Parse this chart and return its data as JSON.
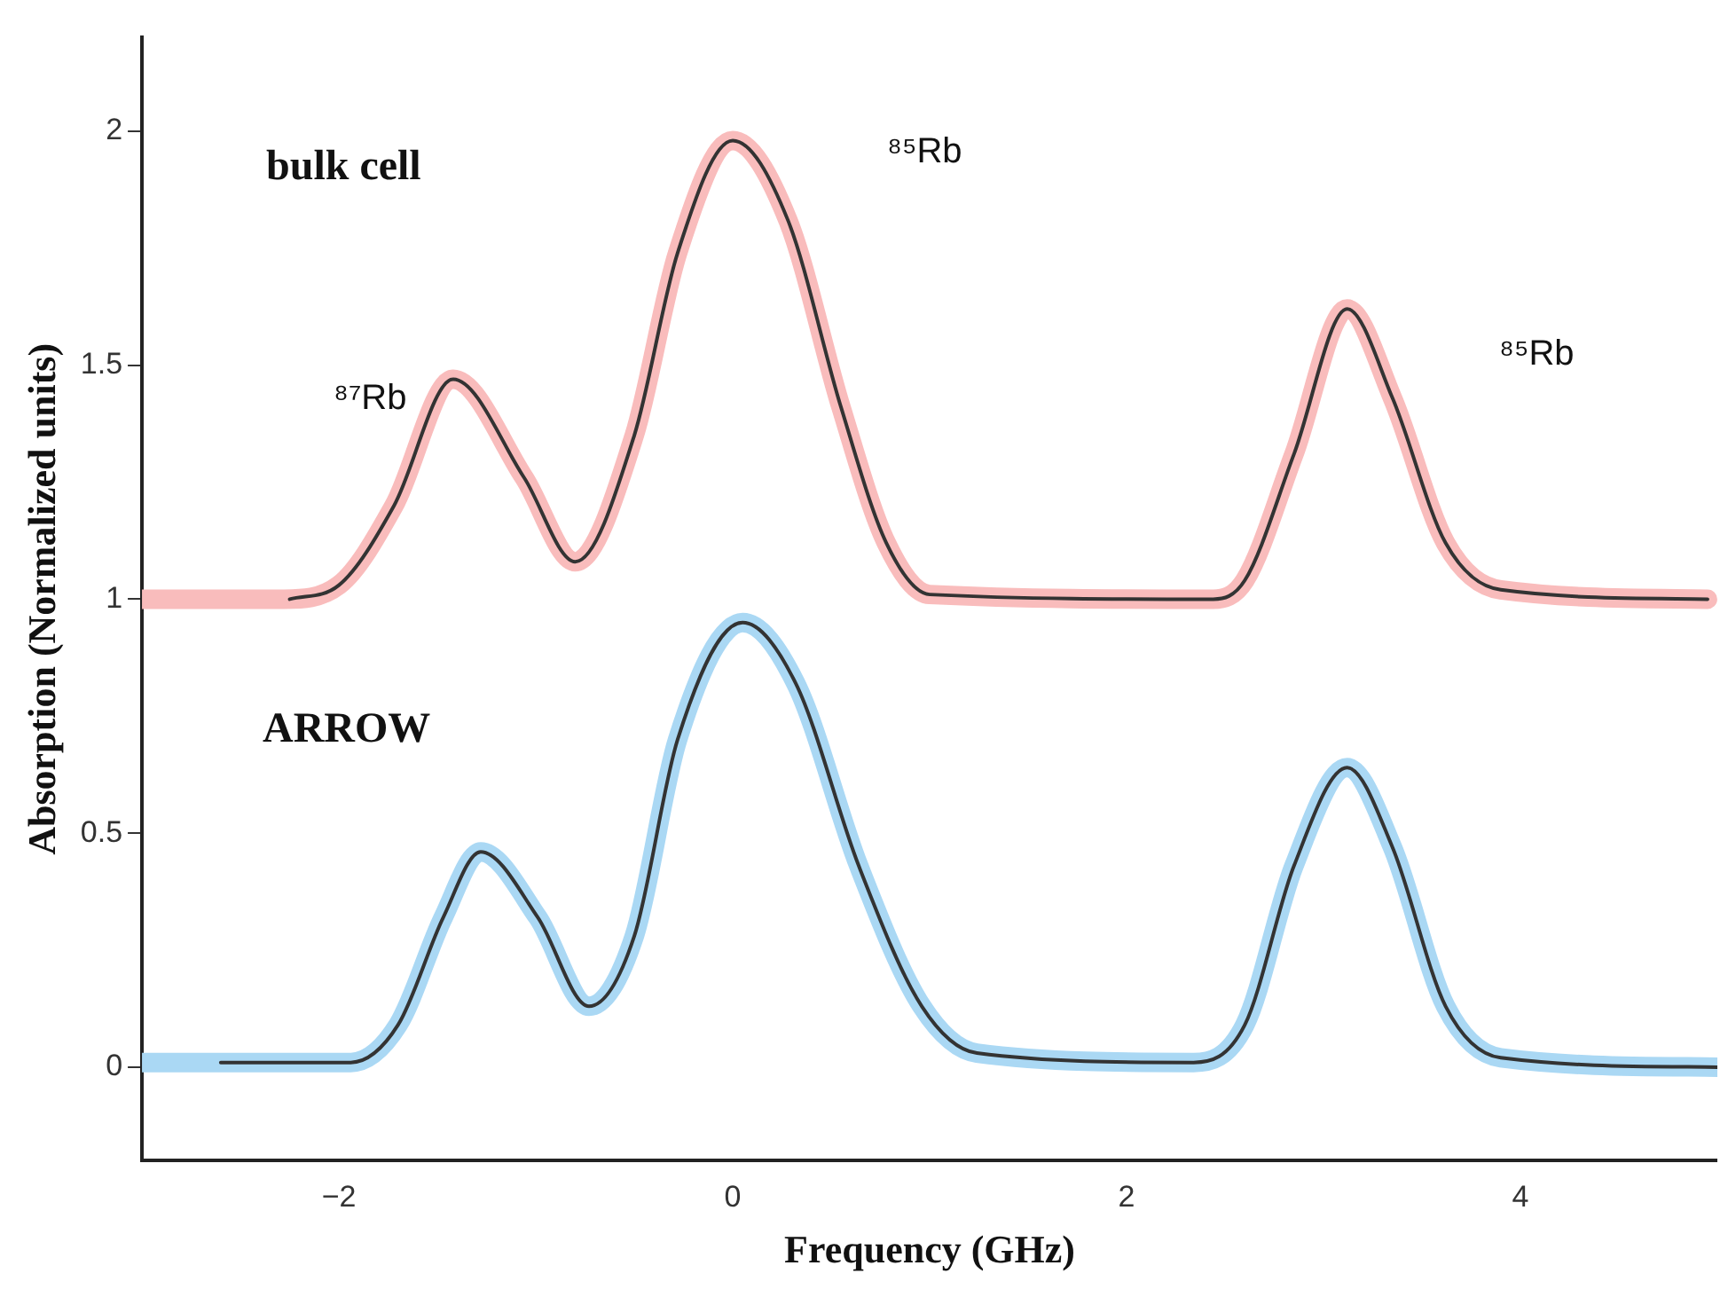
{
  "chart_data": {
    "type": "line",
    "xlabel": "Frequency (GHz)",
    "ylabel": "Absorption (Normalized units)",
    "xlim": [
      -3,
      5
    ],
    "ylim": [
      -0.2,
      2.2
    ],
    "xticks": [
      -2,
      0,
      2,
      4
    ],
    "yticks": [
      0,
      0.5,
      1,
      1.5,
      2
    ],
    "grid": false,
    "legend": false,
    "marker": "none",
    "line_style": "solid",
    "series": [
      {
        "color": "#f9bcbc",
        "x": [
          -3,
          -2.28,
          -2,
          -1.72,
          -1.42,
          -1.06,
          -0.8,
          -0.5,
          -0.28,
          0,
          0.28,
          0.55,
          0.78,
          1,
          2.44,
          2.6,
          2.85,
          3.12,
          3.35,
          3.62,
          3.9,
          4.95
        ],
        "values": [
          1,
          1,
          1.03,
          1.2,
          1.47,
          1.26,
          1.08,
          1.35,
          1.74,
          1.98,
          1.81,
          1.41,
          1.12,
          1.01,
          1,
          1.04,
          1.31,
          1.62,
          1.43,
          1.12,
          1.02,
          1
        ]
      },
      {
        "color": "#333333",
        "x": [
          -2.25,
          -2,
          -1.72,
          -1.42,
          -1.06,
          -0.8,
          -0.5,
          -0.28,
          0,
          0.28,
          0.55,
          0.78,
          1,
          2.44,
          2.6,
          2.85,
          3.12,
          3.35,
          3.62,
          3.9,
          4.95
        ],
        "values": [
          1,
          1.03,
          1.2,
          1.47,
          1.26,
          1.08,
          1.35,
          1.74,
          1.98,
          1.81,
          1.41,
          1.12,
          1.01,
          1,
          1.04,
          1.31,
          1.62,
          1.43,
          1.12,
          1.02,
          1
        ]
      },
      {
        "color": "#aad8f4",
        "x": [
          -3,
          -1.94,
          -1.7,
          -1.47,
          -1.28,
          -0.99,
          -0.73,
          -0.5,
          -0.28,
          0.05,
          0.32,
          0.64,
          0.96,
          1.24,
          2.34,
          2.6,
          2.85,
          3.12,
          3.35,
          3.62,
          3.9,
          5
        ],
        "values": [
          0.01,
          0.01,
          0.09,
          0.32,
          0.46,
          0.32,
          0.13,
          0.28,
          0.7,
          0.95,
          0.82,
          0.43,
          0.13,
          0.03,
          0.01,
          0.09,
          0.43,
          0.64,
          0.47,
          0.13,
          0.02,
          0
        ]
      },
      {
        "color": "#333333",
        "x": [
          -2.6,
          -1.94,
          -1.7,
          -1.47,
          -1.28,
          -0.99,
          -0.73,
          -0.5,
          -0.28,
          0.05,
          0.32,
          0.64,
          0.96,
          1.24,
          2.34,
          2.6,
          2.85,
          3.12,
          3.35,
          3.62,
          3.9,
          5
        ],
        "values": [
          0.01,
          0.01,
          0.09,
          0.32,
          0.46,
          0.32,
          0.13,
          0.28,
          0.7,
          0.95,
          0.82,
          0.43,
          0.13,
          0.03,
          0.01,
          0.09,
          0.43,
          0.64,
          0.47,
          0.13,
          0.02,
          0
        ]
      }
    ],
    "annotations": [
      "bulk cell",
      "ARROW",
      "⁸⁷Rb",
      "⁸⁵Rb",
      "⁸⁵Rb"
    ]
  }
}
